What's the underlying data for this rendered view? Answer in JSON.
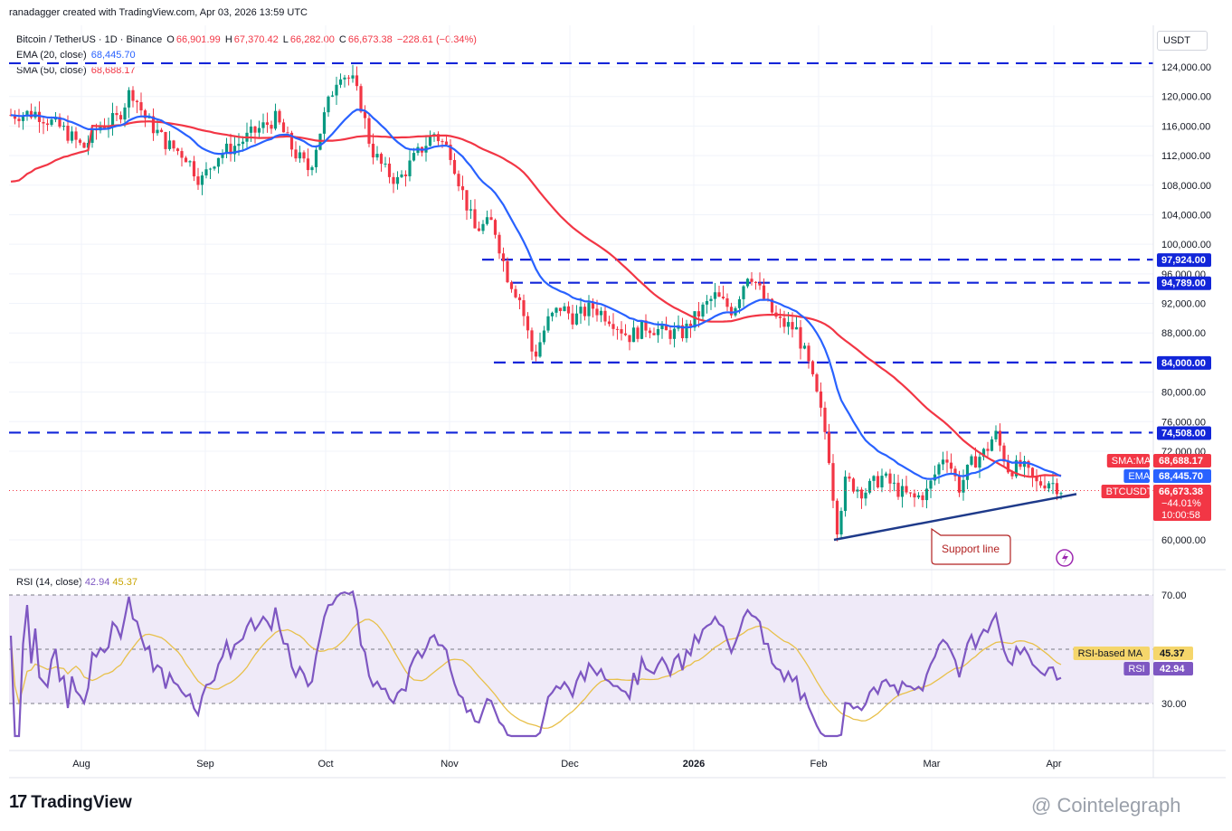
{
  "header": {
    "attribution": "ranadagger created with TradingView.com, Apr 03, 2026 13:59 UTC",
    "symbol": "Bitcoin / TetherUS · 1D · Binance",
    "o_lab": "O",
    "o_val": "66,901.99",
    "h_lab": "H",
    "h_val": "67,370.42",
    "l_lab": "L",
    "l_val": "66,282.00",
    "c_lab": "C",
    "c_val": "66,673.38",
    "change": "−228.61 (−0.34%)",
    "ema_label": "EMA (20, close)",
    "ema_val": "68,445.70",
    "sma_label": "SMA (50, close)",
    "sma_val": "68,688.17",
    "rsi_label": "RSI (14, close)",
    "rsi_val": "42.94",
    "rsi_ma_val": "45.37",
    "currency": "USDT"
  },
  "footer": {
    "logo": "TradingView",
    "watermark": "@ Cointelegraph"
  },
  "colors": {
    "up": "#089981",
    "down": "#f23645",
    "ema": "#2962ff",
    "sma": "#f23645",
    "level": "#1226d9",
    "support": "#1e3a8a",
    "rsi": "#7e57c2",
    "rsi_ma": "#e8c04a",
    "rsi_band": "#efeaf8"
  },
  "chart_data": [
    {
      "type": "candlestick",
      "series": [
        {
          "name": "EMA (20, close)"
        },
        {
          "name": "SMA (50, close)"
        }
      ],
      "x_labels": [
        "Aug",
        "Sep",
        "Oct",
        "Nov",
        "Dec",
        "2026",
        "Feb",
        "Mar",
        "Apr"
      ],
      "y_ticks": [
        124000,
        120000,
        116000,
        112000,
        108000,
        104000,
        100000,
        96000,
        92000,
        88000,
        84000,
        80000,
        76000,
        72000,
        60000
      ],
      "y_tick_labels": [
        "124,000.00",
        "120,000.00",
        "116,000.00",
        "112,000.00",
        "108,000.00",
        "104,000.00",
        "100,000.00",
        "96,000.00",
        "92,000.00",
        "88,000.00",
        "84,000.00",
        "80,000.00",
        "76,000.00",
        "72,000.00",
        "60,000.00"
      ],
      "ylim": [
        58000,
        126000
      ],
      "horizontal_levels": [
        {
          "value": 124500,
          "label": ""
        },
        {
          "value": 97924,
          "label": "97,924.00"
        },
        {
          "value": 94789,
          "label": "94,789.00"
        },
        {
          "value": 84000,
          "label": "84,000.00"
        },
        {
          "value": 74508,
          "label": "74,508.00"
        }
      ],
      "annotation": "Support line",
      "price_tags": [
        {
          "name": "SMA:MA",
          "value": "68,688.17",
          "color": "#f23645"
        },
        {
          "name": "EMA",
          "value": "68,445.70",
          "color": "#2962ff"
        },
        {
          "name": "BTCUSDT",
          "value": "66,673.38",
          "extra1": "−44.01%",
          "extra2": "10:00:58",
          "color": "#f23645"
        }
      ]
    },
    {
      "type": "line",
      "name": "RSI (14, close)",
      "y_ticks": [
        70,
        30
      ],
      "y_tick_labels": [
        "70.00",
        "30.00"
      ],
      "ylim": [
        14,
        78
      ],
      "tags": [
        {
          "name": "RSI-based MA",
          "value": "45.37"
        },
        {
          "name": "RSI",
          "value": "42.94"
        }
      ]
    }
  ]
}
